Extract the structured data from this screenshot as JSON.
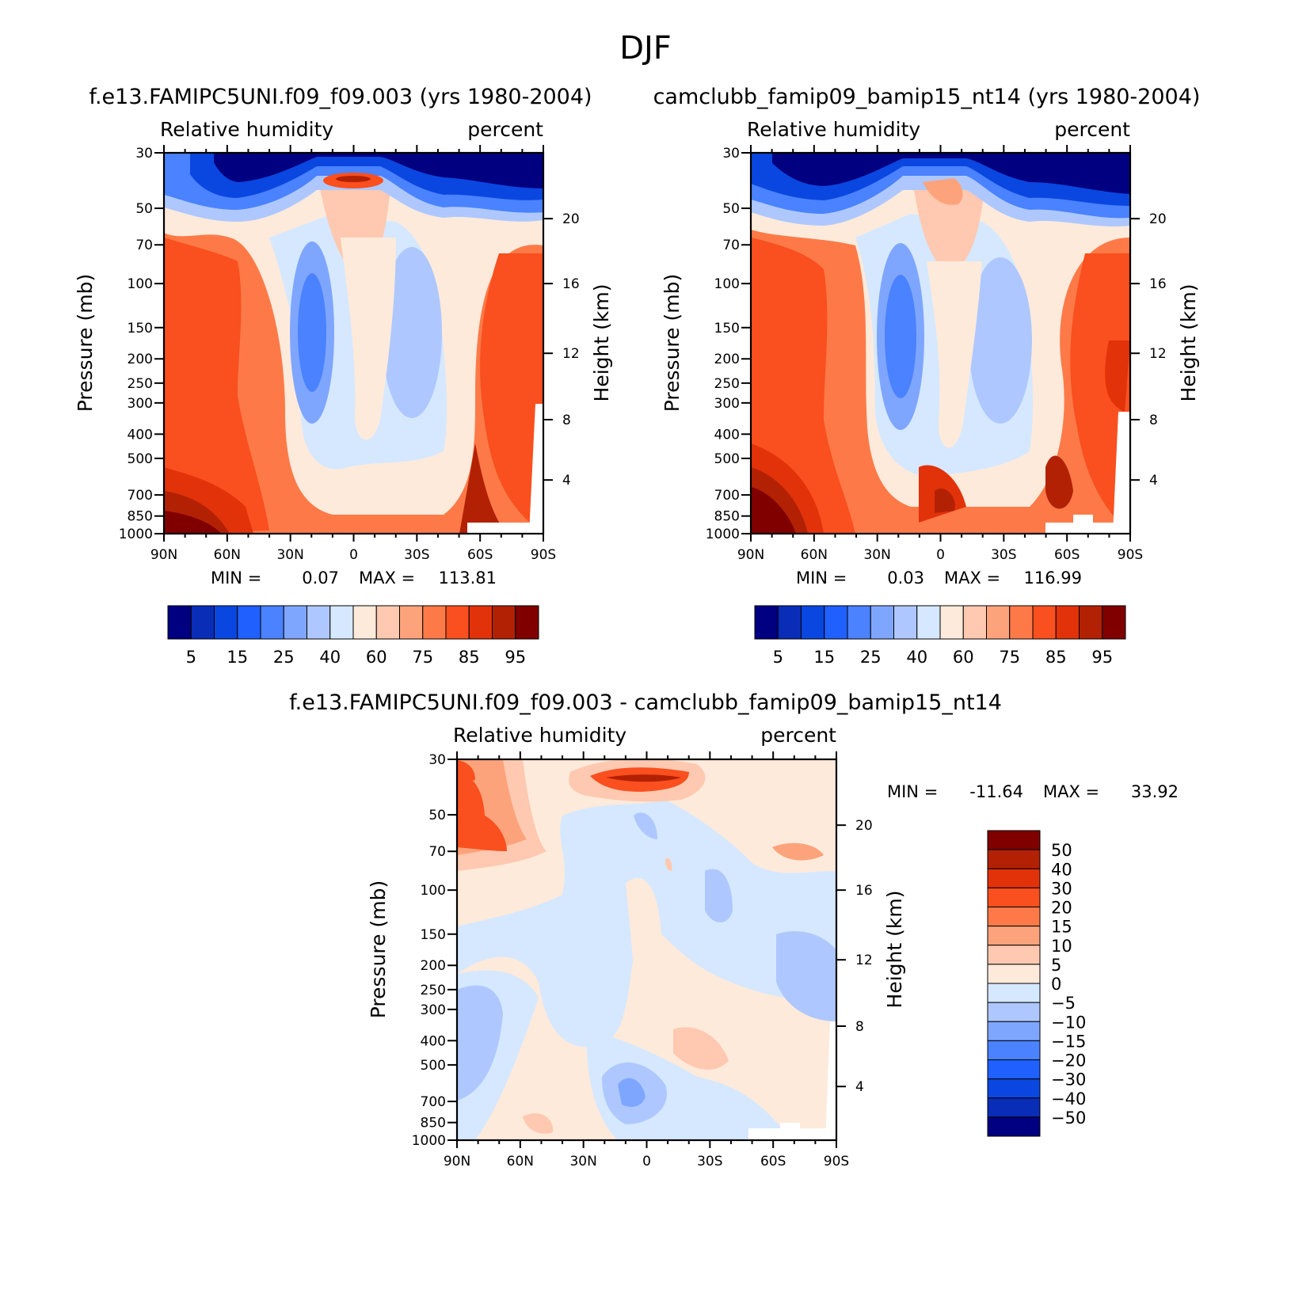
{
  "figure_title": "DJF",
  "palettes": {
    "rh": [
      "#000080",
      "#0a2db8",
      "#0a47e0",
      "#1f60ff",
      "#4a82ff",
      "#7fa6ff",
      "#aec8ff",
      "#d5e8ff",
      "#feeadb",
      "#fec9b0",
      "#fda37b",
      "#fd7a48",
      "#fa4f1e",
      "#e2320a",
      "#b32105",
      "#800000"
    ],
    "diff": [
      "#000080",
      "#0a2db8",
      "#0a47e0",
      "#1f60ff",
      "#4a82ff",
      "#7fa6ff",
      "#aec8ff",
      "#d5e8ff",
      "#feeadb",
      "#fec9b0",
      "#fda37b",
      "#fd7a48",
      "#fa4f1e",
      "#e2320a",
      "#b32105",
      "#800000"
    ]
  },
  "chart_data": [
    {
      "id": "panel_a",
      "type": "heatmap",
      "title": "f.e13.FAMIPC5UNI.f09_f09.003 (yrs 1980-2004)",
      "left_label": "Relative humidity",
      "right_label": "percent",
      "ylabel": "Pressure (mb)",
      "ylabel_right": "Height (km)",
      "x_ticks": [
        "90N",
        "60N",
        "30N",
        "0",
        "30S",
        "60S",
        "90S"
      ],
      "x_range": [
        90,
        -90
      ],
      "y_ticks": [
        "30",
        "50",
        "70",
        "100",
        "150",
        "200",
        "250",
        "300",
        "400",
        "500",
        "700",
        "850",
        "1000"
      ],
      "y_range": [
        30,
        1000
      ],
      "height_ticks": [
        "20",
        "16",
        "12",
        "8",
        "4"
      ],
      "min_label": "MIN =",
      "min_value": "0.07",
      "max_label": "MAX =",
      "max_value": "113.81",
      "colorbar_labels": [
        "5",
        "15",
        "25",
        "40",
        "60",
        "75",
        "85",
        "95"
      ],
      "color_levels": 16
    },
    {
      "id": "panel_b",
      "type": "heatmap",
      "title": "camclubb_famip09_bamip15_nt14 (yrs 1980-2004)",
      "left_label": "Relative humidity",
      "right_label": "percent",
      "ylabel": "Pressure (mb)",
      "ylabel_right": "Height (km)",
      "x_ticks": [
        "90N",
        "60N",
        "30N",
        "0",
        "30S",
        "60S",
        "90S"
      ],
      "x_range": [
        90,
        -90
      ],
      "y_ticks": [
        "30",
        "50",
        "70",
        "100",
        "150",
        "200",
        "250",
        "300",
        "400",
        "500",
        "700",
        "850",
        "1000"
      ],
      "y_range": [
        30,
        1000
      ],
      "height_ticks": [
        "20",
        "16",
        "12",
        "8",
        "4"
      ],
      "min_label": "MIN =",
      "min_value": "0.03",
      "max_label": "MAX =",
      "max_value": "116.99",
      "colorbar_labels": [
        "5",
        "15",
        "25",
        "40",
        "60",
        "75",
        "85",
        "95"
      ],
      "color_levels": 16
    },
    {
      "id": "panel_diff",
      "type": "heatmap",
      "title": "f.e13.FAMIPC5UNI.f09_f09.003 - camclubb_famip09_bamip15_nt14",
      "left_label": "Relative humidity",
      "right_label": "percent",
      "ylabel": "Pressure (mb)",
      "ylabel_right": "Height (km)",
      "x_ticks": [
        "90N",
        "60N",
        "30N",
        "0",
        "30S",
        "60S",
        "90S"
      ],
      "x_range": [
        90,
        -90
      ],
      "y_ticks": [
        "30",
        "50",
        "70",
        "100",
        "150",
        "200",
        "250",
        "300",
        "400",
        "500",
        "700",
        "850",
        "1000"
      ],
      "y_range": [
        30,
        1000
      ],
      "height_ticks": [
        "20",
        "16",
        "12",
        "8",
        "4"
      ],
      "min_label": "MIN =",
      "min_value": "-11.64",
      "max_label": "MAX =",
      "max_value": "33.92",
      "colorbar_labels": [
        "50",
        "40",
        "30",
        "20",
        "15",
        "10",
        "5",
        "0",
        "-5",
        "-10",
        "-15",
        "-20",
        "-30",
        "-40",
        "-50"
      ],
      "color_levels": 16
    }
  ]
}
